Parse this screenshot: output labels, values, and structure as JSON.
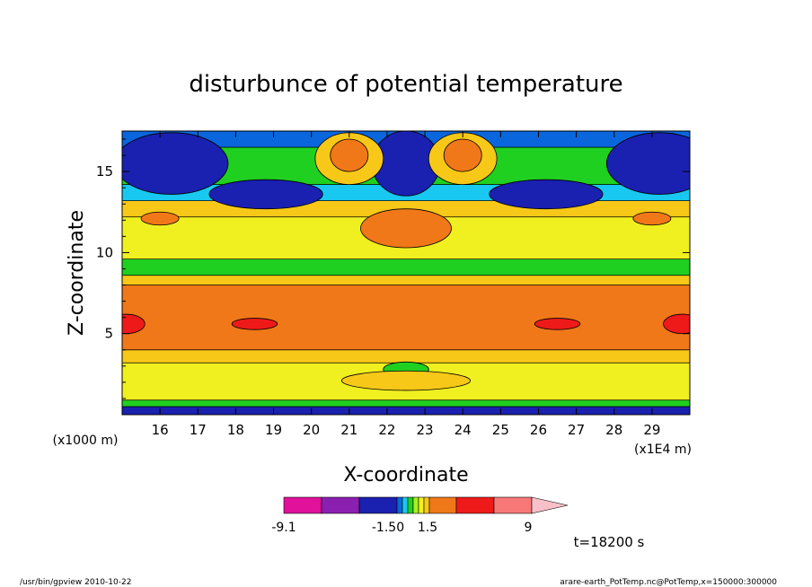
{
  "chart_data": {
    "type": "heatmap",
    "title": "disturbunce of potential temperature",
    "xlabel": "X-coordinate",
    "ylabel": "Z-coordinate",
    "x_unit": "(x1E4 m)",
    "y_unit": "(x1000 m)",
    "xlim": [
      15,
      30
    ],
    "ylim": [
      0,
      17.5
    ],
    "x_ticks": [
      "16",
      "17",
      "18",
      "19",
      "20",
      "21",
      "22",
      "23",
      "24",
      "25",
      "26",
      "27",
      "28",
      "29"
    ],
    "y_ticks": [
      "5",
      "10",
      "15"
    ],
    "grid": false,
    "color_levels": [
      "-9.1",
      "-1.50",
      "1.5",
      "9"
    ],
    "colorbar_colors": [
      "#e0119a",
      "#8b1fb0",
      "#1a20b0",
      "#0a66dd",
      "#18c8f0",
      "#20d020",
      "#a8f020",
      "#f0f020",
      "#f8c818",
      "#f07818",
      "#ee1a1a",
      "#f87878",
      "#f8c0c8"
    ],
    "bands": [
      {
        "z": [
          0.0,
          0.5
        ],
        "color": "#1a20b0"
      },
      {
        "z": [
          0.5,
          0.9
        ],
        "color": "#20d020"
      },
      {
        "z": [
          0.9,
          3.2
        ],
        "color": "#f0f020"
      },
      {
        "z": [
          3.2,
          4.0
        ],
        "color": "#f8c818"
      },
      {
        "z": [
          4.0,
          8.0
        ],
        "color": "#f07818"
      },
      {
        "z": [
          8.0,
          8.6
        ],
        "color": "#f8c818"
      },
      {
        "z": [
          8.6,
          9.6
        ],
        "color": "#20d020"
      },
      {
        "z": [
          9.6,
          12.2
        ],
        "color": "#f0f020"
      },
      {
        "z": [
          12.2,
          13.2
        ],
        "color": "#f8c818"
      },
      {
        "z": [
          13.2,
          14.2
        ],
        "color": "#18c8f0"
      },
      {
        "z": [
          14.2,
          16.5
        ],
        "color": "#20d020"
      },
      {
        "z": [
          16.5,
          17.5
        ],
        "color": "#0a66dd"
      }
    ],
    "blobs": [
      {
        "x": 16.3,
        "z": 15.5,
        "rx": 1.5,
        "rz": 1.9,
        "color": "#1a20b0"
      },
      {
        "x": 29.2,
        "z": 15.5,
        "rx": 1.4,
        "rz": 1.9,
        "color": "#1a20b0"
      },
      {
        "x": 22.5,
        "z": 15.5,
        "rx": 0.9,
        "rz": 2.0,
        "color": "#1a20b0"
      },
      {
        "x": 18.8,
        "z": 13.6,
        "rx": 1.5,
        "rz": 0.9,
        "color": "#1a20b0"
      },
      {
        "x": 26.2,
        "z": 13.6,
        "rx": 1.5,
        "rz": 0.9,
        "color": "#1a20b0"
      },
      {
        "x": 21.0,
        "z": 15.8,
        "rx": 0.9,
        "rz": 1.6,
        "color": "#f8c818"
      },
      {
        "x": 24.0,
        "z": 15.8,
        "rx": 0.9,
        "rz": 1.6,
        "color": "#f8c818"
      },
      {
        "x": 21.0,
        "z": 16.0,
        "rx": 0.5,
        "rz": 1.0,
        "color": "#f07818"
      },
      {
        "x": 24.0,
        "z": 16.0,
        "rx": 0.5,
        "rz": 1.0,
        "color": "#f07818"
      },
      {
        "x": 22.5,
        "z": 11.5,
        "rx": 1.2,
        "rz": 1.2,
        "color": "#f07818"
      },
      {
        "x": 16.0,
        "z": 12.1,
        "rx": 0.5,
        "rz": 0.4,
        "color": "#f07818"
      },
      {
        "x": 29.0,
        "z": 12.1,
        "rx": 0.5,
        "rz": 0.4,
        "color": "#f07818"
      },
      {
        "x": 15.1,
        "z": 5.6,
        "rx": 0.5,
        "rz": 0.6,
        "color": "#ee1a1a"
      },
      {
        "x": 29.8,
        "z": 5.6,
        "rx": 0.5,
        "rz": 0.6,
        "color": "#ee1a1a"
      },
      {
        "x": 18.5,
        "z": 5.6,
        "rx": 0.6,
        "rz": 0.35,
        "color": "#ee1a1a"
      },
      {
        "x": 26.5,
        "z": 5.6,
        "rx": 0.6,
        "rz": 0.35,
        "color": "#ee1a1a"
      },
      {
        "x": 22.5,
        "z": 2.8,
        "rx": 0.6,
        "rz": 0.45,
        "color": "#20d020"
      },
      {
        "x": 22.5,
        "z": 2.1,
        "rx": 1.7,
        "rz": 0.6,
        "color": "#f8c818"
      }
    ]
  },
  "colorbar": {
    "labels": [
      "-9.1",
      "-1.50",
      "1.5",
      "9"
    ]
  },
  "time_label": "t=18200 s",
  "footer": {
    "left": "/usr/bin/gpview   2010-10-22",
    "right": "arare-earth_PotTemp.nc@PotTemp,x=150000:300000"
  }
}
